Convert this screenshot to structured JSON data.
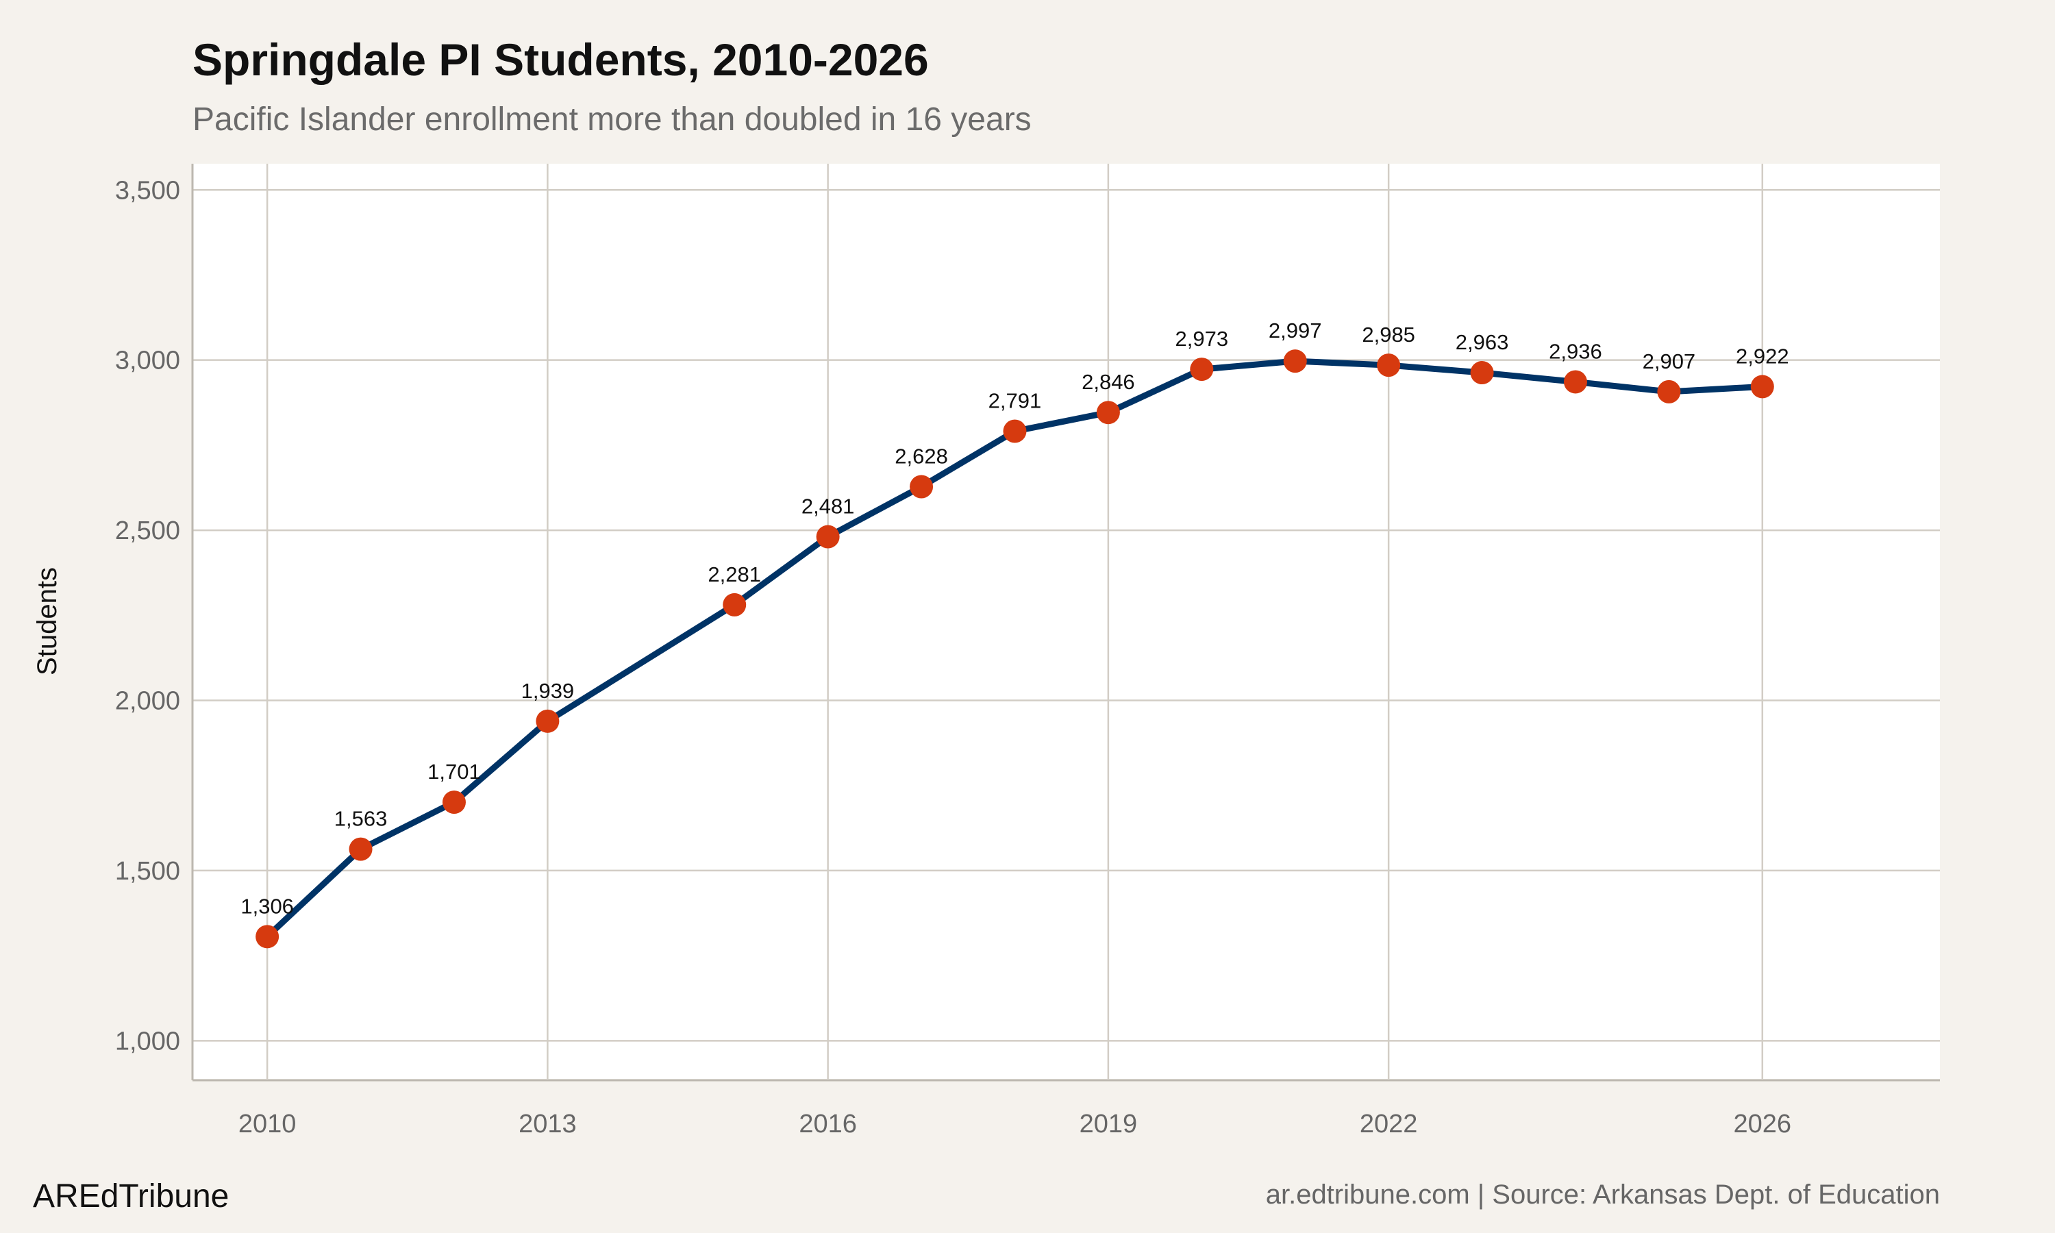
{
  "chart_data": {
    "type": "line",
    "title": "Springdale PI Students, 2010-2026",
    "subtitle": "Pacific Islander enrollment more than doubled in 16 years",
    "xlabel": "",
    "ylabel": "Students",
    "x": [
      2010,
      2011,
      2012,
      2013,
      2015,
      2016,
      2017,
      2018,
      2019,
      2020,
      2021,
      2022,
      2023,
      2024,
      2025,
      2026
    ],
    "values": [
      1306,
      1563,
      1701,
      1939,
      2281,
      2481,
      2628,
      2791,
      2846,
      2973,
      2997,
      2985,
      2963,
      2936,
      2907,
      2922
    ],
    "data_labels": [
      "1,306",
      "1,563",
      "1,701",
      "1,939",
      "2,281",
      "2,481",
      "2,628",
      "2,791",
      "2,846",
      "2,973",
      "2,997",
      "2,985",
      "2,963",
      "2,936",
      "2,907",
      "2,922"
    ],
    "xlim": [
      2009.2,
      2027.9
    ],
    "ylim": [
      888,
      3577
    ],
    "x_ticks": [
      2010,
      2013,
      2016,
      2019,
      2022,
      2026
    ],
    "x_tick_labels": [
      "2010",
      "2013",
      "2016",
      "2019",
      "2022",
      "2026"
    ],
    "y_ticks": [
      1000,
      1500,
      2000,
      2500,
      3000,
      3500
    ],
    "y_tick_labels": [
      "1,000",
      "1,500",
      "2,000",
      "2,500",
      "3,000",
      "3,500"
    ],
    "grid": true,
    "legend": "none",
    "colors": {
      "line": "#003366",
      "points": "#d63a0f",
      "background": "#f5f2ed",
      "panel": "#ffffff",
      "grid": "#d2cdc5"
    }
  },
  "footer": {
    "brand": "AREdTribune",
    "source": "ar.edtribune.com | Source: Arkansas Dept. of Education"
  }
}
